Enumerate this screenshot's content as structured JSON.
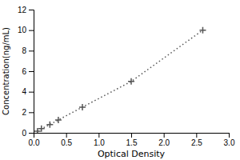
{
  "chart_data": {
    "type": "line",
    "xlabel": "Optical Density",
    "ylabel": "Concentration(ng/mL)",
    "x": [
      0.06,
      0.12,
      0.25,
      0.38,
      0.75,
      1.5,
      2.6
    ],
    "series": [
      {
        "color": "#555555",
        "marker": "plus",
        "line_style": "dotted",
        "values": [
          0.15,
          0.4,
          0.8,
          1.25,
          2.5,
          5.0,
          10.0
        ]
      }
    ],
    "xlim": [
      0,
      3
    ],
    "ylim": [
      0,
      12
    ],
    "xticks": [
      {
        "value": 0,
        "label": "0.0"
      },
      {
        "value": 0.5,
        "label": "0.5"
      },
      {
        "value": 1,
        "label": "1.0"
      },
      {
        "value": 1.5,
        "label": "1.5"
      },
      {
        "value": 2,
        "label": "2.0"
      },
      {
        "value": 2.5,
        "label": "2.5"
      },
      {
        "value": 3,
        "label": "3.0"
      }
    ],
    "yticks": [
      0,
      2,
      4,
      6,
      8,
      10,
      12
    ]
  }
}
